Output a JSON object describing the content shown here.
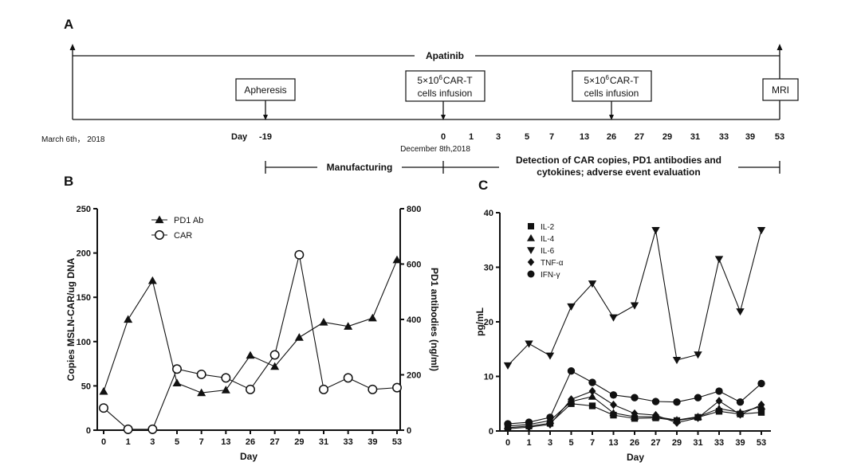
{
  "panels": {
    "a": "A",
    "b": "B",
    "c": "C"
  },
  "timeline": {
    "drug": "Apatinib",
    "start_date": "March 6th， 2018",
    "day_prefix": "Day",
    "days": [
      "-19",
      "0",
      "1",
      "3",
      "5",
      "7",
      "13",
      "26",
      "27",
      "29",
      "31",
      "33",
      "39",
      "53"
    ],
    "infusion_date": "December 8th,2018",
    "apheresis": "Apheresis",
    "infusion_1": {
      "line1_prefix": "5×10",
      "line1_sup": "6",
      "line1_suffix": "CAR-T",
      "line2": "cells infusion"
    },
    "infusion_2": {
      "line1_prefix": "5×10",
      "line1_sup": "6",
      "line1_suffix": "CAR-T",
      "line2": "cells infusion"
    },
    "mri": "MRI",
    "manufacturing": "Manufacturing",
    "detection_line1": "Detection of CAR copies, PD1 antibodies and",
    "detection_line2": "cytokines; adverse event evaluation"
  },
  "chart_data": [
    {
      "type": "line",
      "panel": "B",
      "x": [
        "0",
        "1",
        "3",
        "5",
        "7",
        "13",
        "26",
        "27",
        "29",
        "31",
        "33",
        "39",
        "53"
      ],
      "xlabel": "Day",
      "ylabel": "Copies MSLN-CAR/ug DNA",
      "ylim": [
        0,
        250
      ],
      "yticks": [
        0,
        50,
        100,
        150,
        200,
        250
      ],
      "y2label": "PD1 antibodies (ng/ml)",
      "y2lim": [
        0,
        800
      ],
      "y2ticks": [
        0,
        200,
        400,
        600,
        800
      ],
      "legend_position": "top-left",
      "series": [
        {
          "name": "PD1 Ab",
          "axis": "right",
          "marker": "triangle-up",
          "values": [
            140,
            400,
            540,
            170,
            135,
            145,
            270,
            230,
            335,
            390,
            375,
            405,
            615
          ]
        },
        {
          "name": "CAR",
          "axis": "left",
          "marker": "circle-open",
          "values": [
            25,
            1,
            1,
            69,
            63,
            59,
            46,
            85,
            198,
            46,
            59,
            46,
            48
          ]
        }
      ]
    },
    {
      "type": "line",
      "panel": "C",
      "x": [
        "0",
        "1",
        "3",
        "5",
        "7",
        "13",
        "26",
        "27",
        "29",
        "31",
        "33",
        "39",
        "53"
      ],
      "xlabel": "Day",
      "ylabel": "pg/mL",
      "ylim": [
        0,
        40
      ],
      "yticks": [
        0,
        10,
        20,
        30,
        40
      ],
      "legend_position": "top-left",
      "series": [
        {
          "name": "IL-2",
          "marker": "square",
          "values": [
            0.6,
            0.9,
            1.4,
            5.0,
            4.6,
            2.9,
            2.3,
            2.4,
            1.9,
            2.5,
            3.6,
            3.1,
            3.4
          ]
        },
        {
          "name": "IL-4",
          "marker": "triangle-up",
          "values": [
            0.9,
            1.2,
            1.9,
            5.4,
            6.3,
            3.3,
            2.6,
            2.6,
            2.0,
            2.6,
            4.1,
            3.4,
            4.5
          ]
        },
        {
          "name": "IL-6",
          "marker": "triangle-down",
          "values": [
            12.0,
            16.0,
            13.8,
            22.8,
            27.0,
            20.8,
            23.0,
            36.8,
            13.0,
            14.0,
            31.5,
            21.9,
            36.8
          ]
        },
        {
          "name": "TNF-α",
          "marker": "diamond",
          "values": [
            0.4,
            0.7,
            1.2,
            5.8,
            7.3,
            4.8,
            3.2,
            2.9,
            1.5,
            2.4,
            5.5,
            3.0,
            4.8
          ]
        },
        {
          "name": "IFN-γ",
          "marker": "circle",
          "values": [
            1.3,
            1.6,
            2.5,
            11.0,
            8.9,
            6.6,
            6.1,
            5.4,
            5.3,
            6.1,
            7.3,
            5.3,
            8.7
          ]
        }
      ]
    }
  ]
}
